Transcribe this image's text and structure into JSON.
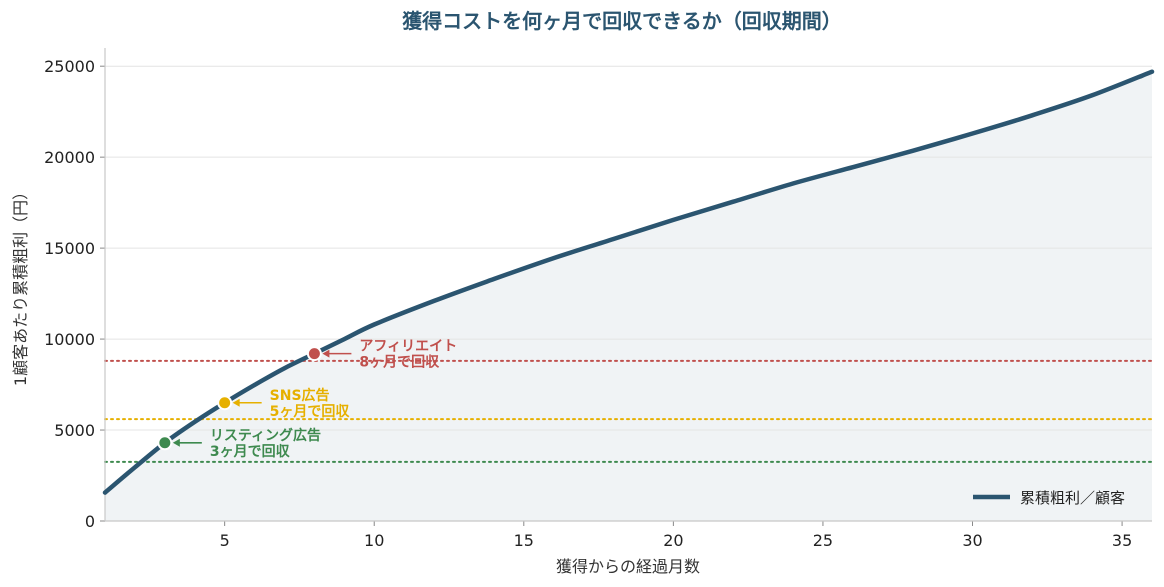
{
  "chart_data": {
    "type": "line",
    "title": "獲得コストを何ヶ月で回収できるか（回収期間）",
    "xlabel": "獲得からの経過月数",
    "ylabel": "1顧客あたり累積粗利（円）",
    "xlim": [
      1,
      36
    ],
    "ylim": [
      0,
      26000
    ],
    "xticks": [
      "5",
      "10",
      "15",
      "20",
      "25",
      "30",
      "35"
    ],
    "yticks": [
      "0",
      "5000",
      "10000",
      "15000",
      "20000",
      "25000"
    ],
    "grid": "horizontal",
    "legend_position": "bottom-right",
    "series": [
      {
        "name": "累積粗利／顧客",
        "color": "#2b5570",
        "x": [
          1,
          2,
          3,
          4,
          5,
          6,
          7,
          8,
          9,
          10,
          12,
          14,
          16,
          18,
          20,
          22,
          24,
          26,
          28,
          30,
          32,
          34,
          36
        ],
        "y": [
          1560,
          2950,
          4300,
          5450,
          6500,
          7480,
          8400,
          9200,
          10000,
          10800,
          12100,
          13300,
          14450,
          15500,
          16550,
          17550,
          18550,
          19450,
          20350,
          21300,
          22300,
          23400,
          24700
        ]
      }
    ],
    "thresholds": [
      {
        "label": "アフィリエイト",
        "sub": "8ヶ月で回収",
        "month": 8,
        "cost": 8800,
        "point_y": 9200,
        "color": "#c0504d"
      },
      {
        "label": "SNS広告",
        "sub": "5ヶ月で回収",
        "month": 5,
        "cost": 5600,
        "point_y": 6500,
        "color": "#e6b000"
      },
      {
        "label": "リスティング広告",
        "sub": "3ヶ月で回収",
        "month": 3,
        "cost": 3250,
        "point_y": 4300,
        "color": "#3e8a4f"
      }
    ]
  }
}
